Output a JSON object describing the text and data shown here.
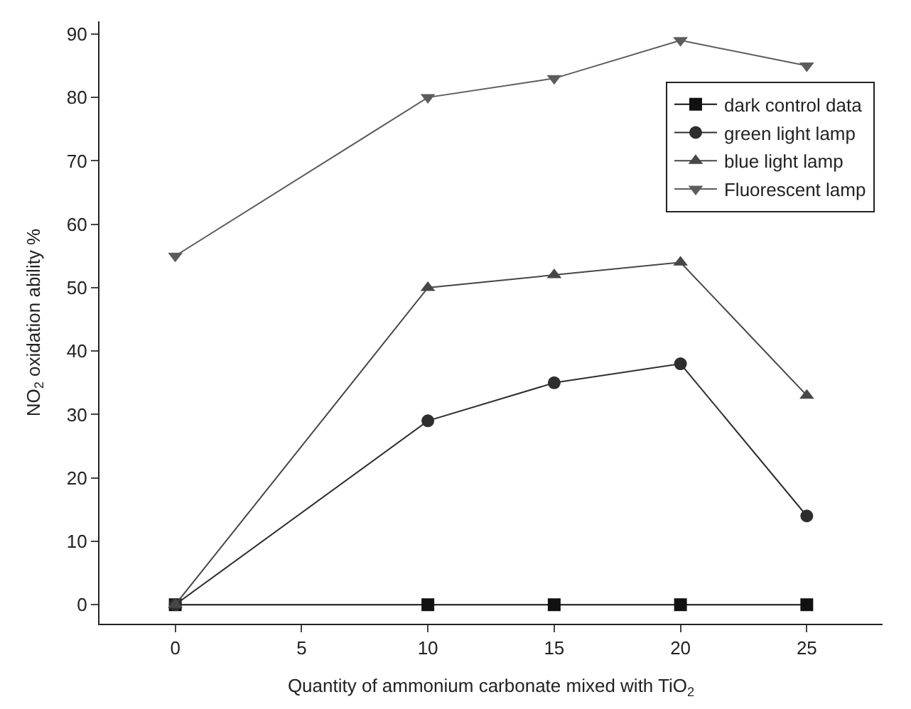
{
  "chart_data": {
    "type": "line",
    "xlabel": "Quantity of ammonium carbonate mixed with TiO$_{2}$",
    "ylabel": "NO$_{2}$ oxidation ability %",
    "x": [
      0,
      10,
      15,
      20,
      25
    ],
    "series": [
      {
        "name": "dark control data",
        "color": "#111111",
        "marker": "square",
        "values": [
          0,
          0,
          0,
          0,
          0
        ]
      },
      {
        "name": "green light lamp",
        "color": "#2e2e2e",
        "marker": "circle",
        "values": [
          0,
          29,
          35,
          38,
          14
        ]
      },
      {
        "name": "blue light lamp",
        "color": "#474747",
        "marker": "triangle",
        "values": [
          0,
          50,
          52,
          54,
          33
        ]
      },
      {
        "name": "Fluorescent lamp",
        "color": "#5c5c5c",
        "marker": "triangle-down",
        "values": [
          55,
          80,
          83,
          89,
          85
        ]
      }
    ],
    "xlim": [
      -3,
      28
    ],
    "xticks": [
      0,
      5,
      10,
      15,
      20,
      25
    ],
    "ylim": [
      -3,
      92
    ],
    "yticks": [
      0,
      10,
      20,
      30,
      40,
      50,
      60,
      70,
      80,
      90
    ],
    "legend": "top right",
    "line_style": "solid"
  }
}
